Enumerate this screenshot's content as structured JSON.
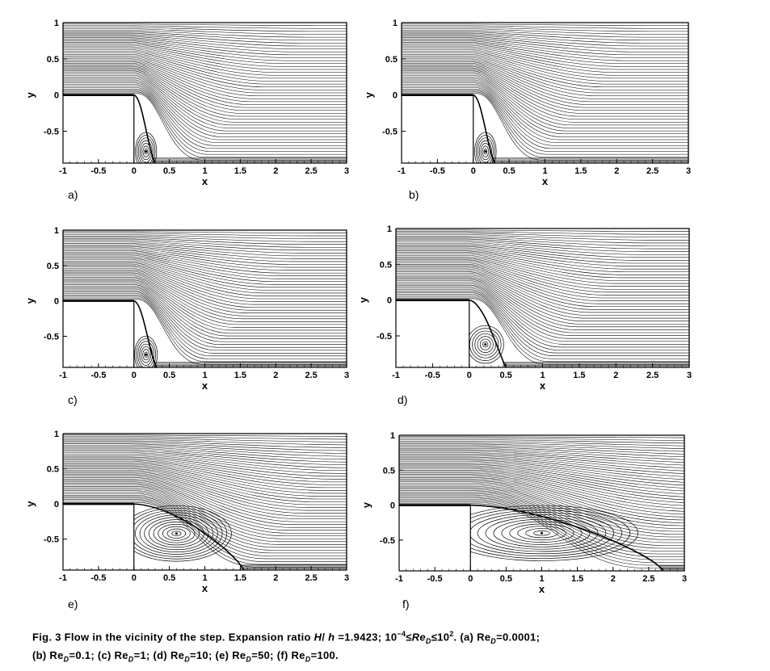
{
  "figure": {
    "caption_line1_prefix": "Fig. 3  Flow in the vicinity of the step. Expansion ratio ",
    "caption_ratio_var": "H",
    "caption_ratio_sep": "/ ",
    "caption_ratio_var2": "h",
    "caption_ratio_val": " =1.9423;  10",
    "caption_exp_neg4": "−4",
    "caption_le1": "≤",
    "caption_re": "Re",
    "caption_sub_d": "D",
    "caption_le2": "≤10",
    "caption_exp2": "2",
    "caption_a": ". (a) Re",
    "caption_a_val": "=0.0001;",
    "caption_b": "(b) Re",
    "caption_b_val": "=0.1; (c) Re",
    "caption_c_val": "=1; (d) Re",
    "caption_d_val": "=10; (e) Re",
    "caption_e_val": "=50; (f) Re",
    "caption_f_val": "=100."
  },
  "chart_data": [
    {
      "type": "streamline",
      "label": "a)",
      "Re_D": 0.0001,
      "xlabel": "x",
      "ylabel": "y",
      "xlim": [
        -1,
        3
      ],
      "ylim": [
        -0.94,
        1
      ],
      "xticks": [
        "-1",
        "-0.5",
        "0",
        "0.5",
        "1",
        "1.5",
        "2",
        "2.5",
        "3"
      ],
      "yticks": [
        "1",
        "0.5",
        "0",
        "-0.5"
      ],
      "step": {
        "x": [
          -1,
          0
        ],
        "y": [
          -0.94,
          0
        ]
      },
      "vortex": {
        "center": [
          0.17,
          -0.78
        ],
        "reattach_x": 0.3
      }
    },
    {
      "type": "streamline",
      "label": "b)",
      "Re_D": 0.1,
      "xlabel": "x",
      "ylabel": "y",
      "xlim": [
        -1,
        3
      ],
      "ylim": [
        -0.94,
        1
      ],
      "xticks": [
        "-1",
        "-0.5",
        "0",
        "0.5",
        "1",
        "1.5",
        "2",
        "2.5",
        "3"
      ],
      "yticks": [
        "1",
        "0.5",
        "0",
        "-0.5"
      ],
      "step": {
        "x": [
          -1,
          0
        ],
        "y": [
          -0.94,
          0
        ]
      },
      "vortex": {
        "center": [
          0.17,
          -0.78
        ],
        "reattach_x": 0.3
      }
    },
    {
      "type": "streamline",
      "label": "c)",
      "Re_D": 1,
      "xlabel": "x",
      "ylabel": "y",
      "xlim": [
        -1,
        3
      ],
      "ylim": [
        -0.94,
        1
      ],
      "xticks": [
        "-1",
        "-0.5",
        "0",
        "0.5",
        "1",
        "1.5",
        "2",
        "2.5",
        "3"
      ],
      "yticks": [
        "1",
        "0.5",
        "0",
        "-0.5"
      ],
      "step": {
        "x": [
          -1,
          0
        ],
        "y": [
          -0.94,
          0
        ]
      },
      "vortex": {
        "center": [
          0.17,
          -0.76
        ],
        "reattach_x": 0.32
      }
    },
    {
      "type": "streamline",
      "label": "d)",
      "Re_D": 10,
      "xlabel": "x",
      "ylabel": "y",
      "xlim": [
        -1,
        3
      ],
      "ylim": [
        -0.94,
        1
      ],
      "xticks": [
        "-1",
        "-0.5",
        "0",
        "0.5",
        "1",
        "1.5",
        "2",
        "2.5",
        "3"
      ],
      "yticks": [
        "1",
        "0.5",
        "0",
        "-0.5"
      ],
      "step": {
        "x": [
          -1,
          0
        ],
        "y": [
          -0.94,
          0
        ]
      },
      "vortex": {
        "center": [
          0.22,
          -0.62
        ],
        "reattach_x": 0.5
      }
    },
    {
      "type": "streamline",
      "label": "e)",
      "Re_D": 50,
      "xlabel": "x",
      "ylabel": "y",
      "xlim": [
        -1,
        3
      ],
      "ylim": [
        -0.94,
        1
      ],
      "xticks": [
        "-1",
        "-0.5",
        "0",
        "0.5",
        "1",
        "1.5",
        "2",
        "2.5",
        "3"
      ],
      "yticks": [
        "1",
        "0.5",
        "0",
        "-0.5"
      ],
      "step": {
        "x": [
          -1,
          0
        ],
        "y": [
          -0.94,
          0
        ]
      },
      "vortex": {
        "center": [
          0.6,
          -0.42
        ],
        "reattach_x": 1.55
      }
    },
    {
      "type": "streamline",
      "label": "f)",
      "Re_D": 100,
      "xlabel": "x",
      "ylabel": "y",
      "xlim": [
        -1,
        3
      ],
      "ylim": [
        -0.94,
        1
      ],
      "xticks": [
        "-1",
        "-0.5",
        "0",
        "0.5",
        "1",
        "1.5",
        "2",
        "2.5",
        "3"
      ],
      "yticks": [
        "1",
        "0.5",
        "0",
        "-0.5"
      ],
      "step": {
        "x": [
          -1,
          0
        ],
        "y": [
          -0.94,
          0
        ]
      },
      "vortex": {
        "center": [
          1.0,
          -0.4
        ],
        "reattach_x": 2.7
      }
    }
  ]
}
